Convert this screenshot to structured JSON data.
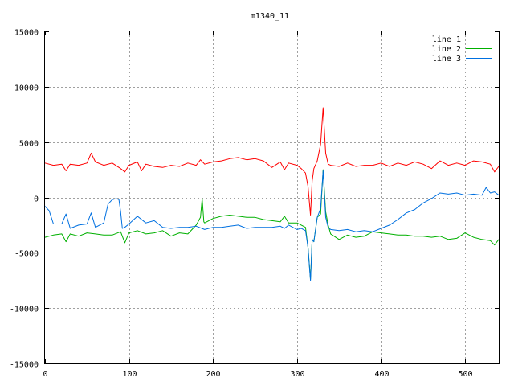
{
  "chart_data": {
    "type": "line",
    "title": "m1340_11",
    "xlabel": "",
    "ylabel": "",
    "xlim": [
      0,
      540
    ],
    "ylim": [
      -15000,
      15000
    ],
    "xticks": [
      0,
      100,
      200,
      300,
      400,
      500
    ],
    "yticks": [
      -15000,
      -10000,
      -5000,
      0,
      5000,
      10000,
      15000
    ],
    "grid": true,
    "legend_position": "top-right",
    "series": [
      {
        "name": "line 1",
        "color": "#ff0000",
        "x": [
          0,
          10,
          20,
          25,
          30,
          40,
          50,
          55,
          60,
          70,
          80,
          90,
          95,
          100,
          110,
          115,
          120,
          130,
          140,
          150,
          160,
          170,
          180,
          185,
          190,
          200,
          210,
          220,
          230,
          240,
          250,
          260,
          270,
          280,
          285,
          290,
          300,
          305,
          310,
          313,
          316,
          318,
          320,
          324,
          328,
          331,
          334,
          337,
          340,
          350,
          360,
          370,
          380,
          390,
          400,
          410,
          420,
          430,
          440,
          450,
          460,
          470,
          480,
          490,
          500,
          510,
          520,
          530,
          535,
          540
        ],
        "y": [
          3100,
          2900,
          3000,
          2400,
          3000,
          2900,
          3100,
          4000,
          3200,
          2900,
          3100,
          2600,
          2300,
          2900,
          3200,
          2400,
          3000,
          2800,
          2700,
          2900,
          2800,
          3100,
          2900,
          3400,
          3000,
          3200,
          3300,
          3500,
          3600,
          3400,
          3500,
          3300,
          2700,
          3200,
          2500,
          3100,
          2900,
          2600,
          2200,
          1000,
          -1600,
          1500,
          2600,
          3300,
          4800,
          8100,
          4000,
          3000,
          2900,
          2800,
          3100,
          2800,
          2900,
          2900,
          3100,
          2800,
          3100,
          2900,
          3200,
          3000,
          2600,
          3300,
          2900,
          3100,
          2900,
          3300,
          3200,
          3000,
          2300,
          2800
        ]
      },
      {
        "name": "line 2",
        "color": "#00b000",
        "x": [
          0,
          10,
          20,
          25,
          30,
          40,
          50,
          60,
          70,
          80,
          90,
          95,
          100,
          110,
          120,
          130,
          140,
          150,
          160,
          170,
          180,
          185,
          187,
          189,
          190,
          200,
          210,
          220,
          230,
          240,
          250,
          260,
          270,
          280,
          285,
          290,
          300,
          305,
          310,
          313,
          316,
          318,
          320,
          324,
          328,
          331,
          334,
          337,
          340,
          350,
          360,
          370,
          380,
          390,
          400,
          410,
          420,
          430,
          440,
          450,
          460,
          470,
          480,
          490,
          500,
          510,
          520,
          530,
          535,
          540
        ],
        "y": [
          -3600,
          -3400,
          -3300,
          -4000,
          -3300,
          -3500,
          -3200,
          -3300,
          -3400,
          -3400,
          -3100,
          -4100,
          -3200,
          -3000,
          -3300,
          -3200,
          -3000,
          -3500,
          -3200,
          -3300,
          -2500,
          -1800,
          -100,
          -2200,
          -2300,
          -1900,
          -1700,
          -1600,
          -1700,
          -1800,
          -1800,
          -2000,
          -2100,
          -2200,
          -1700,
          -2300,
          -2300,
          -2500,
          -2700,
          -4500,
          -7400,
          -3800,
          -4000,
          -1800,
          -1500,
          2500,
          -1300,
          -2500,
          -3300,
          -3800,
          -3400,
          -3600,
          -3500,
          -3100,
          -3200,
          -3300,
          -3400,
          -3400,
          -3500,
          -3500,
          -3600,
          -3500,
          -3800,
          -3700,
          -3200,
          -3600,
          -3800,
          -3900,
          -4300,
          -3800
        ]
      },
      {
        "name": "line 3",
        "color": "#0070e0",
        "x": [
          0,
          5,
          10,
          20,
          25,
          30,
          40,
          50,
          55,
          60,
          70,
          75,
          80,
          85,
          88,
          90,
          92,
          95,
          100,
          110,
          120,
          130,
          140,
          150,
          160,
          170,
          180,
          190,
          200,
          210,
          220,
          230,
          240,
          250,
          260,
          270,
          280,
          285,
          290,
          300,
          305,
          310,
          313,
          316,
          318,
          320,
          324,
          328,
          331,
          334,
          337,
          340,
          350,
          360,
          370,
          380,
          390,
          400,
          410,
          420,
          430,
          440,
          450,
          460,
          470,
          480,
          490,
          500,
          510,
          520,
          525,
          530,
          535,
          540
        ],
        "y": [
          -800,
          -1200,
          -2400,
          -2400,
          -1500,
          -2800,
          -2500,
          -2400,
          -1400,
          -2700,
          -2300,
          -600,
          -200,
          -100,
          -200,
          -1300,
          -2800,
          -2700,
          -2400,
          -1700,
          -2300,
          -2100,
          -2700,
          -2800,
          -2700,
          -2700,
          -2600,
          -2900,
          -2700,
          -2700,
          -2600,
          -2500,
          -2800,
          -2700,
          -2700,
          -2700,
          -2600,
          -2800,
          -2500,
          -2900,
          -2800,
          -3000,
          -4500,
          -7500,
          -3800,
          -4000,
          -1800,
          -1000,
          2400,
          -1800,
          -2700,
          -2900,
          -3000,
          -2900,
          -3100,
          -3000,
          -3100,
          -2800,
          -2500,
          -2000,
          -1400,
          -1100,
          -500,
          -100,
          400,
          300,
          400,
          200,
          300,
          200,
          900,
          400,
          500,
          200
        ]
      }
    ]
  }
}
